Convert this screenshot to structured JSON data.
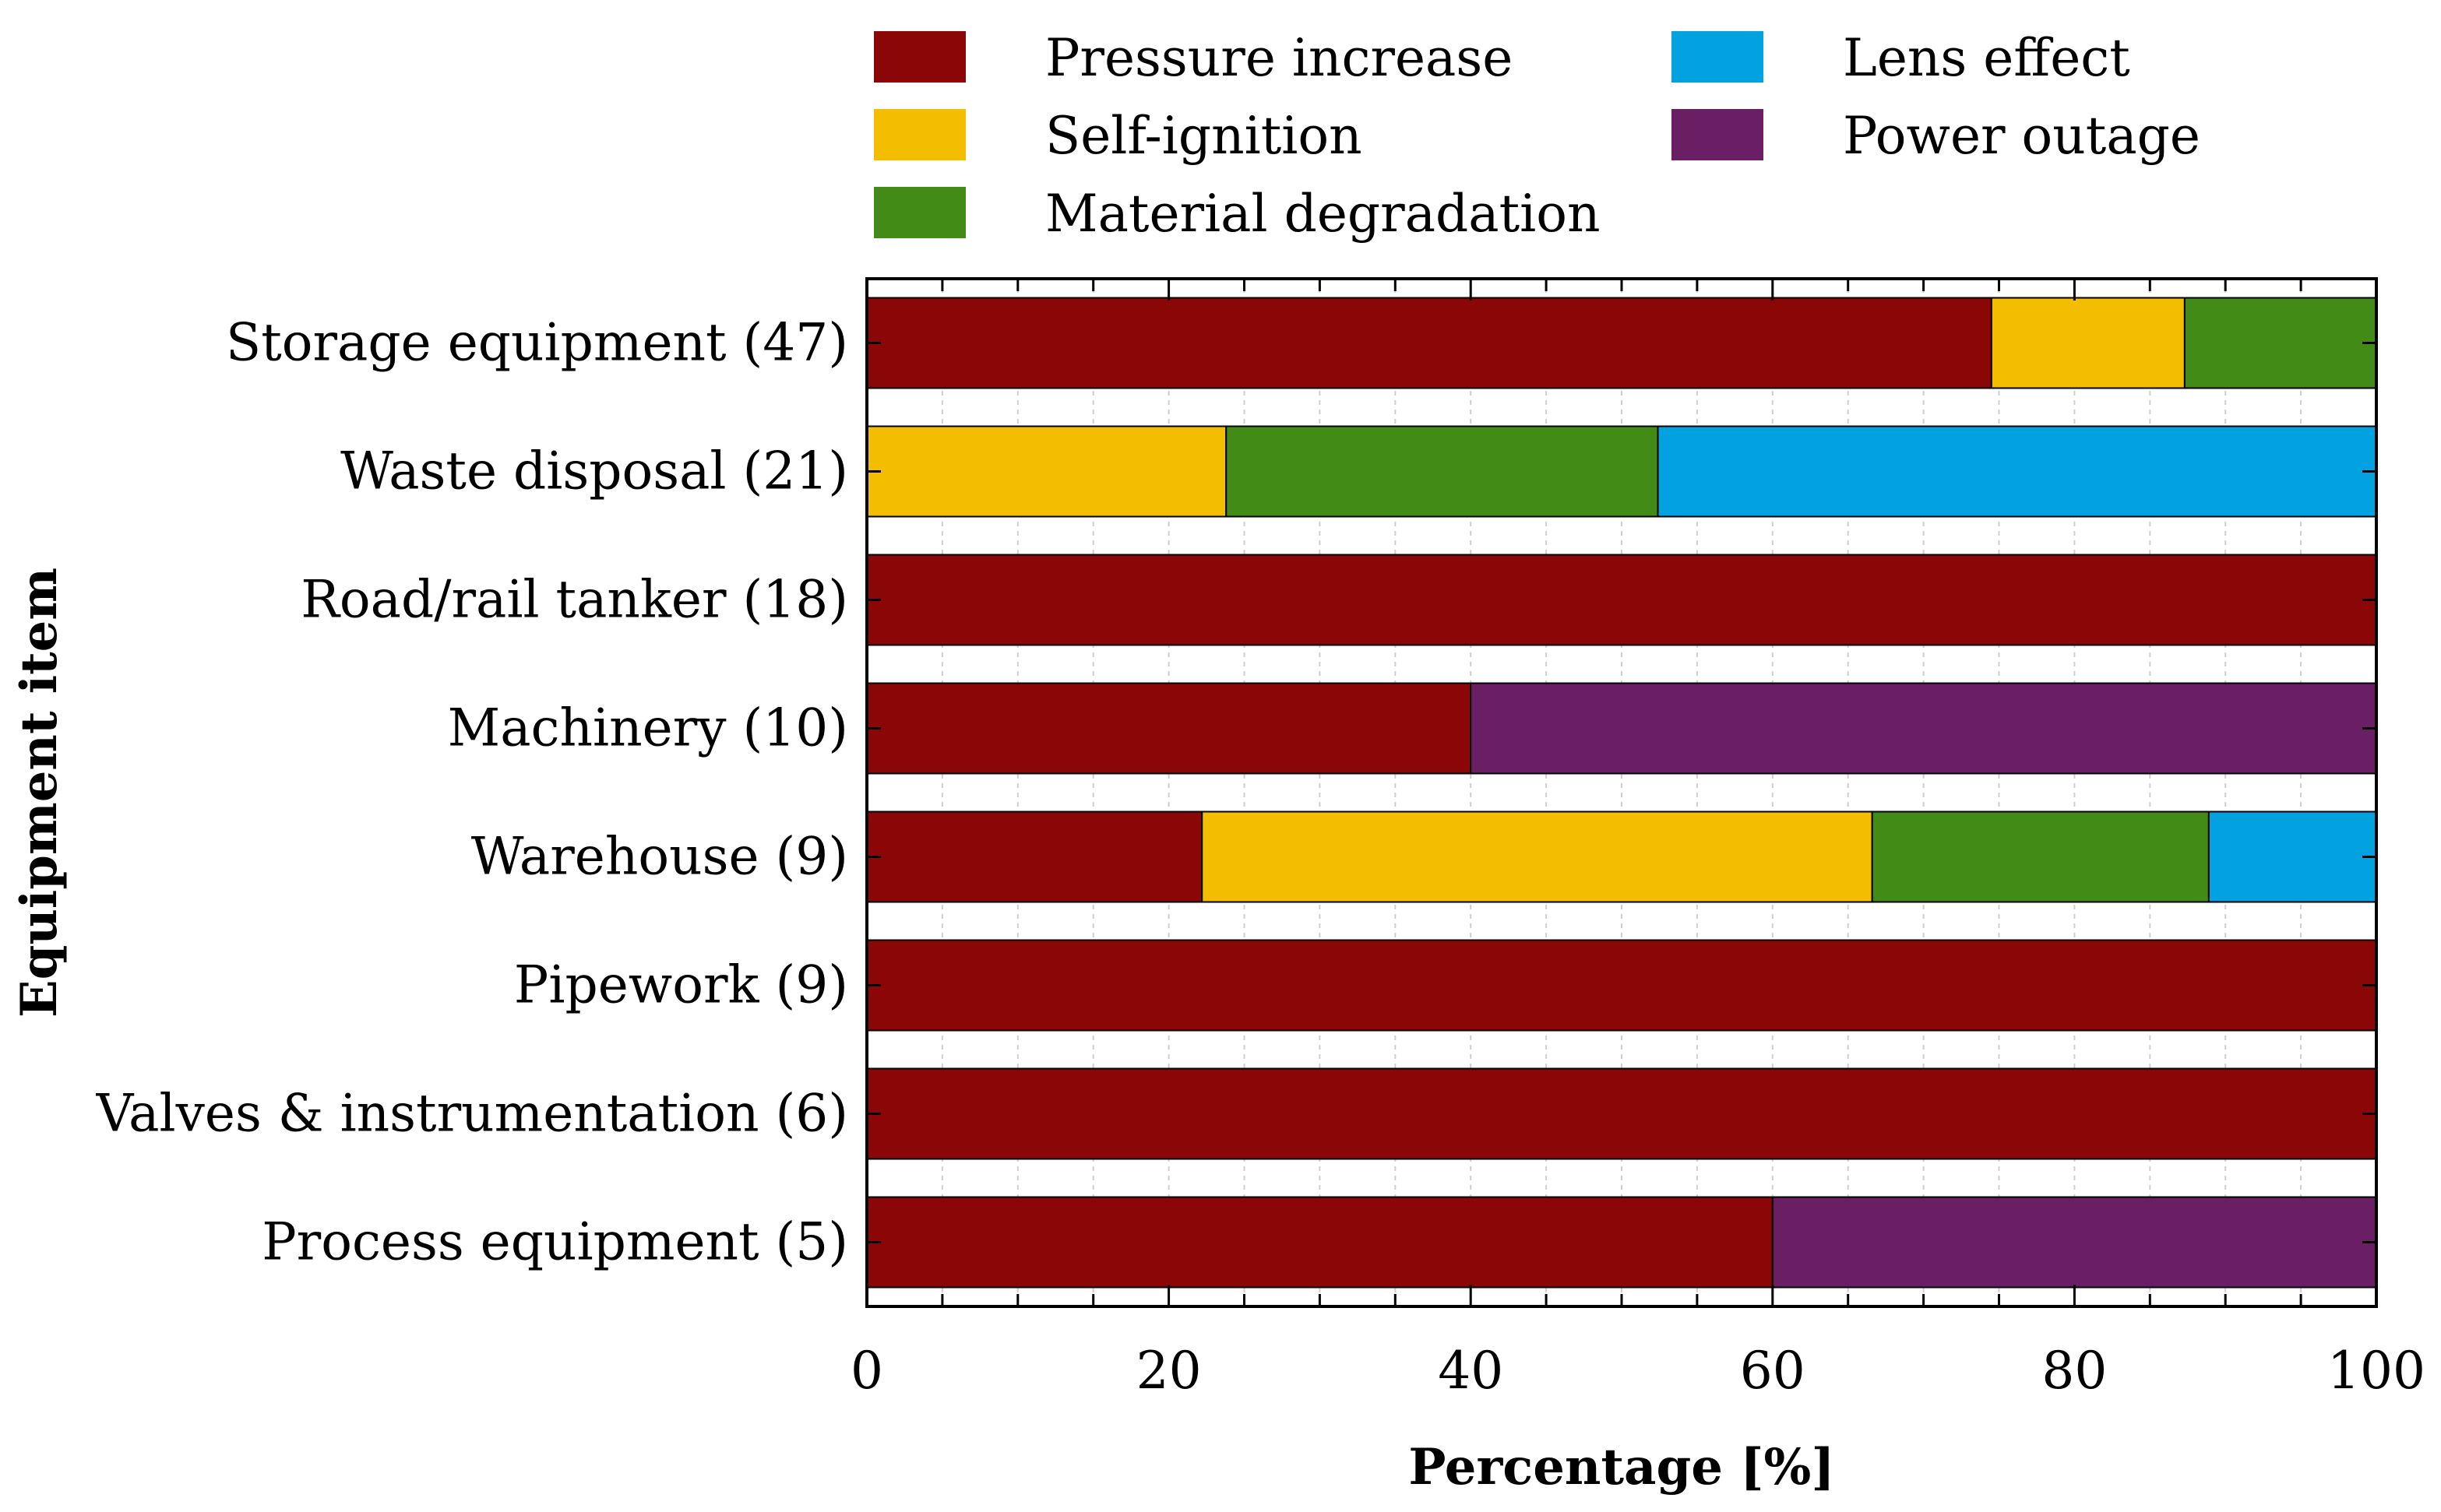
{
  "chart_data": {
    "type": "bar",
    "orientation": "horizontal",
    "stacked": true,
    "title": "",
    "xlabel": "Percentage [%]",
    "ylabel": "Equipment item",
    "xlim": [
      0,
      100
    ],
    "xticks": [
      0,
      20,
      40,
      60,
      80,
      100
    ],
    "grid": true,
    "legend_position": "top",
    "categories": [
      "Storage equipment (47)",
      "Waste disposal (21)",
      "Road/rail tanker (18)",
      "Machinery (10)",
      "Warehouse (9)",
      "Pipework (9)",
      "Valves & instrumentation (6)",
      "Process equipment (5)"
    ],
    "series": [
      {
        "name": "Pressure increase",
        "color": "#8b0707",
        "values": [
          74.5,
          0,
          100,
          40,
          22.2,
          100,
          100,
          60
        ]
      },
      {
        "name": "Self-ignition",
        "color": "#f4be00",
        "values": [
          12.8,
          23.8,
          0,
          0,
          44.4,
          0,
          0,
          0
        ]
      },
      {
        "name": "Material degradation",
        "color": "#428b17",
        "values": [
          12.7,
          28.6,
          0,
          0,
          22.3,
          0,
          0,
          0
        ]
      },
      {
        "name": "Lens effect",
        "color": "#02a2e1",
        "values": [
          0,
          47.6,
          0,
          0,
          11.1,
          0,
          0,
          0
        ]
      },
      {
        "name": "Power outage",
        "color": "#6a1e63",
        "values": [
          0,
          0,
          0,
          60,
          0,
          0,
          0,
          40
        ]
      }
    ]
  }
}
